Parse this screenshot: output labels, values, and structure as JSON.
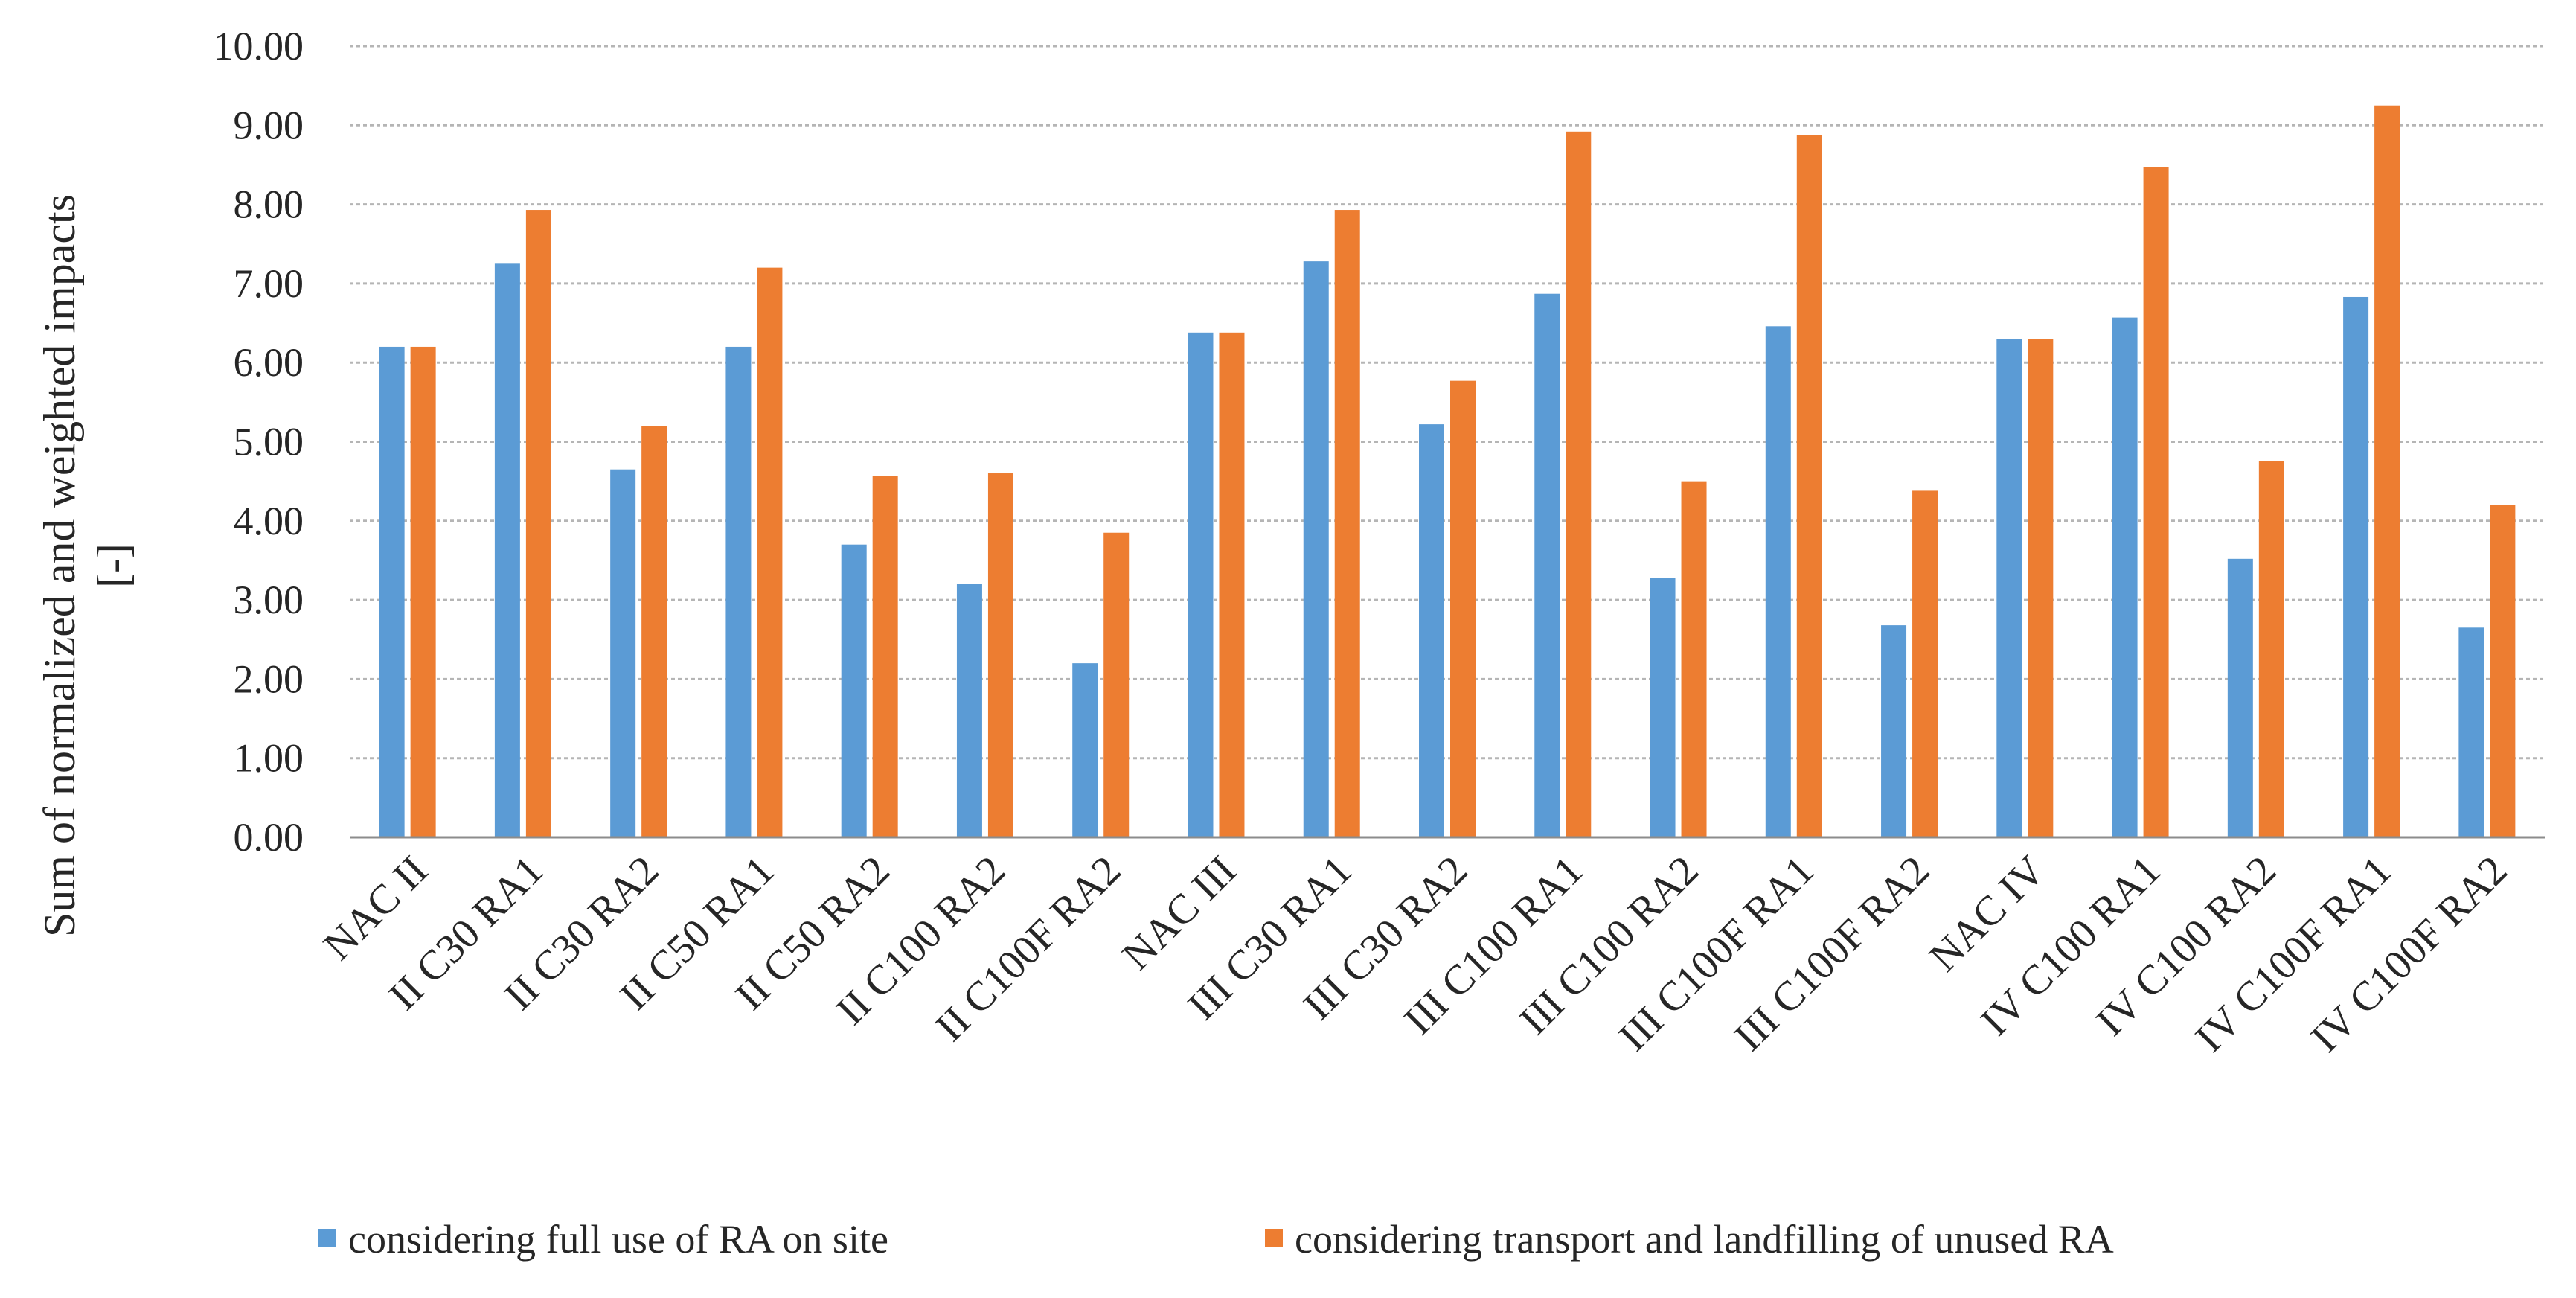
{
  "chart_data": {
    "type": "bar",
    "title": "",
    "xlabel": "",
    "ylabel": "Sum of normalized and weighted impacts",
    "ylabel_line2": "[-]",
    "ylim": [
      0,
      10
    ],
    "ytick_step": 1,
    "ytick_labels": [
      "0.00",
      "1.00",
      "2.00",
      "3.00",
      "4.00",
      "5.00",
      "6.00",
      "7.00",
      "8.00",
      "9.00",
      "10.00"
    ],
    "grid": true,
    "legend_position": "bottom",
    "categories": [
      "NAC II",
      "II C30 RA1",
      "II C30 RA2",
      "II C50 RA1",
      "II C50 RA2",
      "II C100 RA2",
      "II C100F RA2",
      "NAC III",
      "III C30 RA1",
      "III C30 RA2",
      "III C100 RA1",
      "III C100 RA2",
      "III C100F RA1",
      "III C100F RA2",
      "NAC IV",
      "IV C100 RA1",
      "IV C100 RA2",
      "IV C100F RA1",
      "IV C100F RA2"
    ],
    "series": [
      {
        "name": "considering full use of RA on site",
        "color": "#5b9bd5",
        "values": [
          6.2,
          7.25,
          4.65,
          6.2,
          3.7,
          3.2,
          2.2,
          6.38,
          7.28,
          5.22,
          6.87,
          3.28,
          6.46,
          2.68,
          6.3,
          6.57,
          3.52,
          6.83,
          2.65
        ]
      },
      {
        "name": "considering transport and landfilling of unused RA",
        "color": "#ed7d31",
        "values": [
          6.2,
          7.93,
          5.2,
          7.2,
          4.57,
          4.6,
          3.85,
          6.38,
          7.93,
          5.77,
          8.92,
          4.5,
          8.88,
          4.38,
          6.3,
          8.47,
          4.76,
          9.25,
          4.2
        ]
      }
    ]
  }
}
